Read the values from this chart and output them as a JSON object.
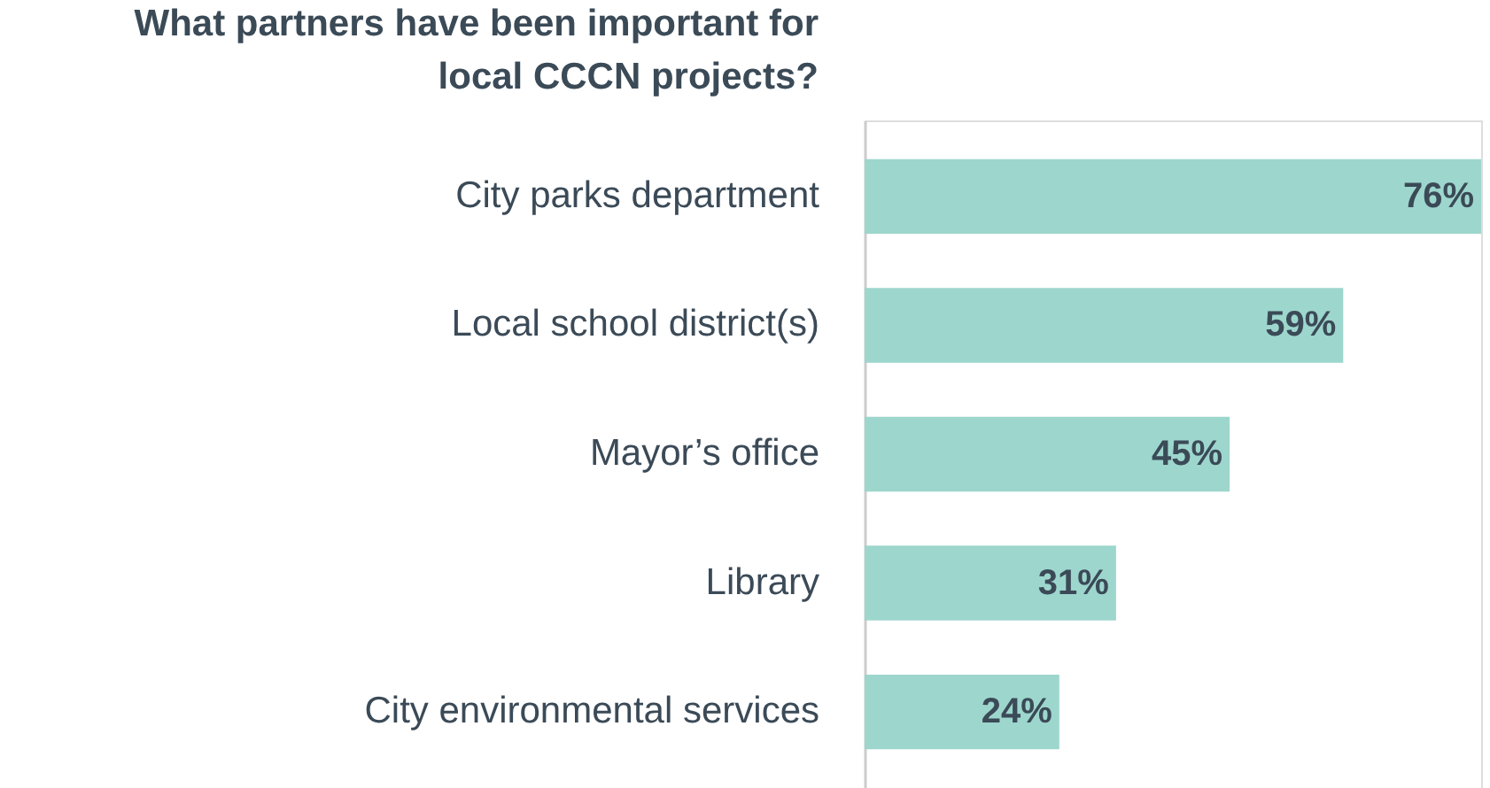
{
  "chart_data": {
    "type": "bar",
    "orientation": "horizontal",
    "title": [
      "What partners have been important for",
      "local CCCN projects?"
    ],
    "categories": [
      "City parks department",
      "Local school district(s)",
      "Mayor’s office",
      "Library",
      "City environmental services"
    ],
    "values": [
      76,
      59,
      45,
      31,
      24
    ],
    "value_labels": [
      "76%",
      "59%",
      "45%",
      "31%",
      "24%"
    ],
    "color": "#9dd6cd"
  }
}
